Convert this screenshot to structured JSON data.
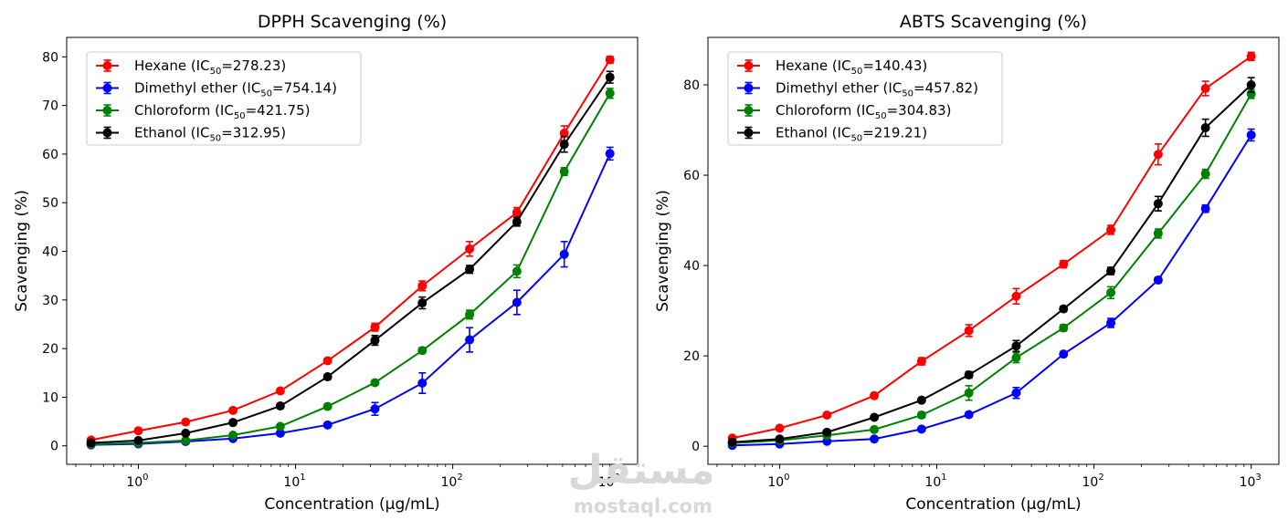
{
  "chart_data": [
    {
      "type": "line",
      "title": "DPPH Scavenging (%)",
      "xlabel": "Concentration (µg/mL)",
      "ylabel": "Scavenging (%)",
      "xscale": "log",
      "xlim": [
        0.35,
        1500
      ],
      "ylim": [
        -3.8,
        84
      ],
      "yticks": [
        0,
        10,
        20,
        30,
        40,
        50,
        60,
        70,
        80
      ],
      "xticks": [
        1,
        10,
        100,
        1000
      ],
      "xtick_labels": [
        [
          "10",
          "0"
        ],
        [
          "10",
          "1"
        ],
        [
          "10",
          "2"
        ],
        [
          "10",
          "3"
        ]
      ],
      "grid": false,
      "legend_position": "upper-left",
      "x": [
        0.5,
        1,
        2,
        4,
        8,
        16,
        32,
        64,
        128,
        256,
        512,
        1000
      ],
      "series": [
        {
          "name": "Hexane",
          "ic50_label": "IC",
          "ic50_sub": "50",
          "ic50_value": "=278.23",
          "color": "#ff0000",
          "values": [
            1.2,
            3.1,
            4.9,
            7.3,
            11.3,
            17.5,
            24.4,
            32.9,
            40.5,
            48.0,
            64.3,
            79.4
          ],
          "errors": [
            0.3,
            0.3,
            0.3,
            0.4,
            0.4,
            0.5,
            0.8,
            1.0,
            1.5,
            1.0,
            1.5,
            0.7
          ]
        },
        {
          "name": "Dimethyl ether",
          "ic50_label": "IC",
          "ic50_sub": "50",
          "ic50_value": "=754.14",
          "color": "#0000ff",
          "values": [
            0.2,
            0.4,
            0.9,
            1.5,
            2.6,
            4.3,
            7.6,
            12.9,
            21.8,
            29.5,
            39.4,
            60.1
          ],
          "errors": [
            0.2,
            0.2,
            0.2,
            0.3,
            0.3,
            0.4,
            1.3,
            2.1,
            2.5,
            2.5,
            2.6,
            1.3
          ]
        },
        {
          "name": "Chloroform",
          "ic50_label": "IC",
          "ic50_sub": "50",
          "ic50_value": "=421.75",
          "color": "#008000",
          "values": [
            0.3,
            0.6,
            1.1,
            2.2,
            4.0,
            8.1,
            13.0,
            19.6,
            27.0,
            35.9,
            56.4,
            72.5
          ],
          "errors": [
            0.2,
            0.2,
            0.2,
            0.3,
            0.3,
            0.4,
            0.5,
            0.6,
            0.9,
            1.3,
            0.8,
            1.0
          ]
        },
        {
          "name": "Ethanol",
          "ic50_label": "IC",
          "ic50_sub": "50",
          "ic50_value": "=312.95",
          "color": "#000000",
          "values": [
            0.6,
            1.1,
            2.6,
            4.8,
            8.2,
            14.2,
            21.7,
            29.4,
            36.3,
            46.1,
            62.0,
            75.8
          ],
          "errors": [
            0.3,
            0.3,
            0.3,
            0.4,
            0.5,
            0.5,
            1.0,
            1.2,
            0.8,
            0.9,
            1.6,
            1.2
          ]
        }
      ]
    },
    {
      "type": "line",
      "title": "ABTS Scavenging (%)",
      "xlabel": "Concentration (µg/mL)",
      "ylabel": "Scavenging (%)",
      "xscale": "log",
      "xlim": [
        0.35,
        1500
      ],
      "ylim": [
        -4.0,
        90.5
      ],
      "yticks": [
        0,
        20,
        40,
        60,
        80
      ],
      "xticks": [
        1,
        10,
        100,
        1000
      ],
      "xtick_labels": [
        [
          "10",
          "0"
        ],
        [
          "10",
          "1"
        ],
        [
          "10",
          "2"
        ],
        [
          "10",
          "3"
        ]
      ],
      "grid": false,
      "legend_position": "upper-left",
      "x": [
        0.5,
        1,
        2,
        4,
        8,
        16,
        32,
        64,
        128,
        256,
        512,
        1000
      ],
      "series": [
        {
          "name": "Hexane",
          "ic50_label": "IC",
          "ic50_sub": "50",
          "ic50_value": "=140.43",
          "color": "#ff0000",
          "values": [
            1.8,
            4.0,
            6.9,
            11.2,
            18.8,
            25.6,
            33.2,
            40.3,
            47.9,
            64.6,
            79.2,
            86.3
          ],
          "errors": [
            0.3,
            0.3,
            0.4,
            0.6,
            0.8,
            1.3,
            1.7,
            0.8,
            1.0,
            2.3,
            1.6,
            0.9
          ]
        },
        {
          "name": "Dimethyl ether",
          "ic50_label": "IC",
          "ic50_sub": "50",
          "ic50_value": "=457.82",
          "color": "#0000ff",
          "values": [
            0.2,
            0.5,
            1.1,
            1.6,
            3.8,
            7.0,
            11.8,
            20.4,
            27.3,
            36.8,
            52.6,
            68.9
          ],
          "errors": [
            0.2,
            0.2,
            0.2,
            0.3,
            0.4,
            0.5,
            1.2,
            0.5,
            1.0,
            0.6,
            0.8,
            1.3
          ]
        },
        {
          "name": "Chloroform",
          "ic50_label": "IC",
          "ic50_sub": "50",
          "ic50_value": "=304.83",
          "color": "#008000",
          "values": [
            0.7,
            1.3,
            2.4,
            3.7,
            6.9,
            11.8,
            19.6,
            26.2,
            34.0,
            47.1,
            60.3,
            78.0
          ],
          "errors": [
            0.2,
            0.2,
            0.3,
            0.3,
            0.6,
            1.6,
            1.1,
            0.7,
            1.3,
            1.0,
            1.0,
            1.0
          ]
        },
        {
          "name": "Ethanol",
          "ic50_label": "IC",
          "ic50_sub": "50",
          "ic50_value": "=219.21",
          "color": "#000000",
          "values": [
            0.9,
            1.6,
            3.1,
            6.4,
            10.2,
            15.8,
            22.2,
            30.4,
            38.8,
            53.7,
            70.5,
            80.0
          ],
          "errors": [
            0.3,
            0.3,
            0.4,
            0.4,
            0.5,
            0.7,
            1.2,
            0.6,
            0.8,
            1.6,
            1.9,
            1.6
          ]
        }
      ]
    }
  ],
  "watermark": {
    "logo_text": "مستقل",
    "site": "mostaql.com"
  }
}
